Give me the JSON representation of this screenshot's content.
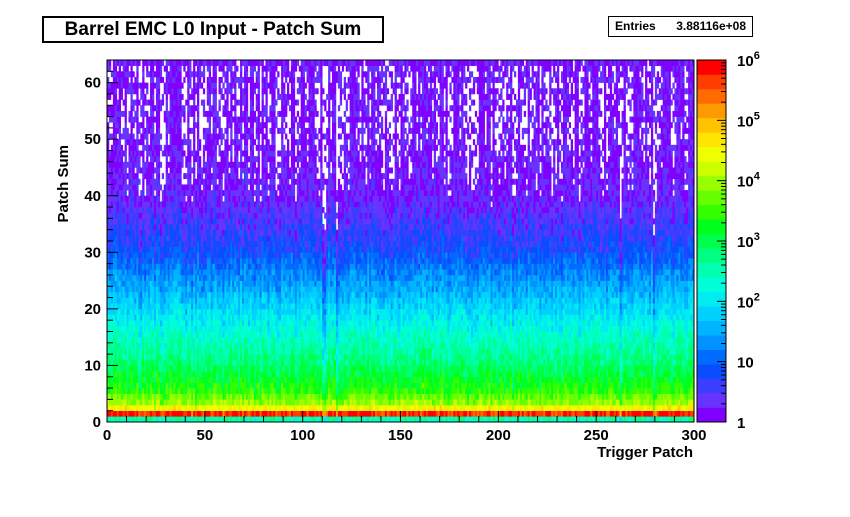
{
  "chart_data": {
    "type": "heatmap",
    "title": "Barrel EMC L0 Input - Patch Sum",
    "xlabel": "Trigger Patch",
    "ylabel": "Patch Sum",
    "xlim": [
      0,
      300
    ],
    "ylim": [
      0,
      64
    ],
    "x_ticks": [
      "0",
      "50",
      "100",
      "150",
      "200",
      "250",
      "300"
    ],
    "y_ticks": [
      "0",
      "10",
      "20",
      "30",
      "40",
      "50",
      "60"
    ],
    "z_scale": "log",
    "zlim": [
      1,
      1000000
    ],
    "z_ticks": [
      {
        "base": "1",
        "exp": ""
      },
      {
        "base": "10",
        "exp": ""
      },
      {
        "base": "10",
        "exp": "2"
      },
      {
        "base": "10",
        "exp": "3"
      },
      {
        "base": "10",
        "exp": "4"
      },
      {
        "base": "10",
        "exp": "5"
      },
      {
        "base": "10",
        "exp": "6"
      }
    ],
    "palette": [
      "#7f00ff",
      "#6633ff",
      "#3d3dff",
      "#0a4dff",
      "#006bff",
      "#0092ff",
      "#00b4ff",
      "#00d2ff",
      "#00ecf0",
      "#00ffd9",
      "#00ffb0",
      "#00ff80",
      "#00ff4d",
      "#00ff1a",
      "#33ff00",
      "#66ff00",
      "#99ff00",
      "#ccff00",
      "#f0ff00",
      "#ffe600",
      "#ffc300",
      "#ff9900",
      "#ff6b00",
      "#ff3d00",
      "#ff0000"
    ],
    "profile_by_patch_sum": [
      {
        "y": 0,
        "counts": 300
      },
      {
        "y": 1,
        "counts": 500000
      },
      {
        "y": 2,
        "counts": 30000
      },
      {
        "y": 3,
        "counts": 8000
      },
      {
        "y": 5,
        "counts": 2500
      },
      {
        "y": 10,
        "counts": 600
      },
      {
        "y": 15,
        "counts": 200
      },
      {
        "y": 20,
        "counts": 60
      },
      {
        "y": 25,
        "counts": 20
      },
      {
        "y": 30,
        "counts": 6
      },
      {
        "y": 35,
        "counts": 3
      },
      {
        "y": 40,
        "counts": 1.5
      },
      {
        "y": 50,
        "counts": 1
      },
      {
        "y": 63,
        "counts": 1
      }
    ],
    "stats": {
      "label": "Entries",
      "value": "3.88116e+08"
    }
  }
}
